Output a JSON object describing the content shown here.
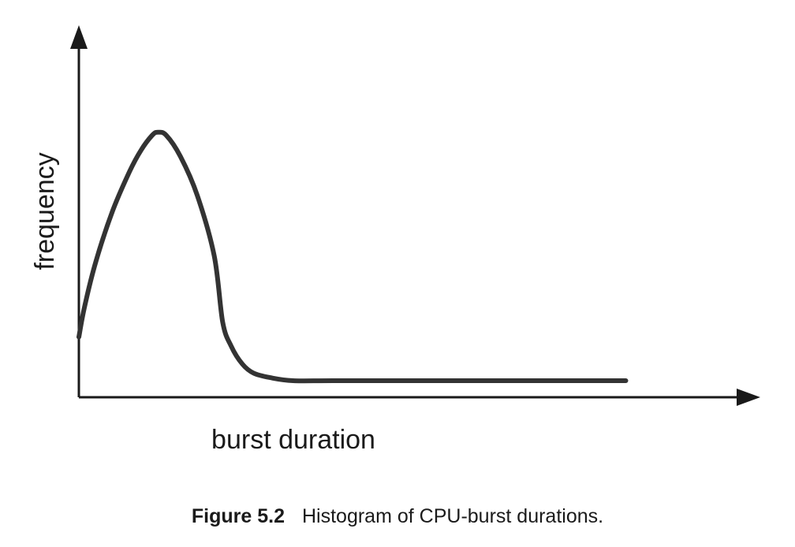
{
  "chart_data": {
    "type": "line",
    "xlabel": "burst duration",
    "ylabel": "frequency",
    "xlim": [
      0,
      100
    ],
    "ylim": [
      0,
      100
    ],
    "grid": false,
    "legend": "none",
    "series": [
      {
        "points": [
          [
            0,
            20
          ],
          [
            1,
            30
          ],
          [
            3,
            45
          ],
          [
            6,
            62
          ],
          [
            9,
            75
          ],
          [
            11,
            82
          ],
          [
            13,
            87
          ],
          [
            14,
            88
          ],
          [
            15.5,
            87
          ],
          [
            18,
            80
          ],
          [
            21,
            67
          ],
          [
            24,
            47
          ],
          [
            25.5,
            25
          ],
          [
            27,
            17
          ],
          [
            29,
            11
          ],
          [
            31,
            8
          ],
          [
            34,
            6.5
          ],
          [
            38,
            5.5
          ],
          [
            45,
            5.5
          ],
          [
            60,
            5.5
          ],
          [
            80,
            5.5
          ],
          [
            97,
            5.5
          ]
        ]
      }
    ],
    "colors": {
      "axis": "#1a1a1a",
      "curve": "#333333"
    }
  },
  "figure": {
    "number": "Figure 5.2",
    "caption": "Histogram of CPU-burst durations."
  }
}
